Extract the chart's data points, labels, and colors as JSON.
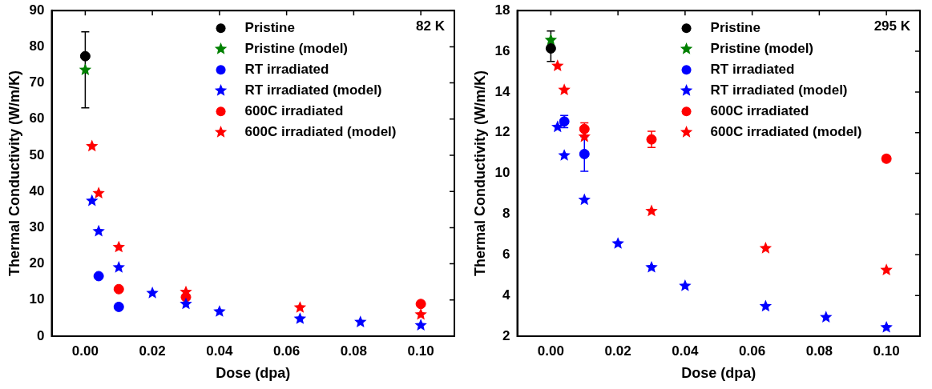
{
  "chart_data": [
    {
      "type": "scatter",
      "xlabel": "Dose (dpa)",
      "ylabel": "Thermal Conductivity (W/m/K)",
      "annotations": [
        "82 K"
      ],
      "legend": "top right",
      "xlim": [
        -0.01,
        0.11
      ],
      "ylim": [
        0,
        90
      ],
      "xticks": [
        {
          "value": 0,
          "label": "0.00"
        },
        {
          "value": 0.02,
          "label": "0.02"
        },
        {
          "value": 0.04,
          "label": "0.04"
        },
        {
          "value": 0.06,
          "label": "0.06"
        },
        {
          "value": 0.08,
          "label": "0.08"
        },
        {
          "value": 0.1,
          "label": "0.10"
        }
      ],
      "yticks": [
        0,
        10,
        20,
        30,
        40,
        50,
        60,
        70,
        80,
        90
      ],
      "series": [
        {
          "name": "Pristine",
          "color": "#000000",
          "marker": "circle",
          "x": [
            0
          ],
          "values": [
            77.4
          ],
          "errors": [
            [
              63.1,
              84.1
            ]
          ]
        },
        {
          "name": "Pristine (model)",
          "color": "#008000",
          "marker": "star",
          "x": [
            0
          ],
          "values": [
            73.6
          ]
        },
        {
          "name": "RT irradiated",
          "color": "#0000ff",
          "marker": "circle",
          "x": [
            0.004,
            0.01
          ],
          "values": [
            16.6,
            8.1
          ]
        },
        {
          "name": "RT irradiated (model)",
          "color": "#0000ff",
          "marker": "star",
          "x": [
            0.002,
            0.004,
            0.01,
            0.02,
            0.03,
            0.04,
            0.064,
            0.082,
            0.1
          ],
          "values": [
            37.4,
            29.0,
            19.0,
            11.9,
            8.9,
            6.8,
            4.8,
            3.9,
            3.0
          ]
        },
        {
          "name": "600C irradiated",
          "color": "#ff0000",
          "marker": "circle",
          "x": [
            0.01,
            0.03,
            0.1
          ],
          "values": [
            13.0,
            10.8,
            8.9
          ]
        },
        {
          "name": "600C irradiated (model)",
          "color": "#ff0000",
          "marker": "star",
          "x": [
            0.002,
            0.004,
            0.01,
            0.03,
            0.064,
            0.1
          ],
          "values": [
            52.5,
            39.5,
            24.6,
            12.2,
            7.9,
            6.0
          ]
        }
      ]
    },
    {
      "type": "scatter",
      "xlabel": "Dose (dpa)",
      "ylabel": "Thermal Conductivity (W/m/K)",
      "annotations": [
        "295 K"
      ],
      "legend": "top right",
      "xlim": [
        -0.01,
        0.11
      ],
      "ylim": [
        2,
        18
      ],
      "xticks": [
        {
          "value": 0,
          "label": "0.00"
        },
        {
          "value": 0.02,
          "label": "0.02"
        },
        {
          "value": 0.04,
          "label": "0.04"
        },
        {
          "value": 0.06,
          "label": "0.06"
        },
        {
          "value": 0.08,
          "label": "0.08"
        },
        {
          "value": 0.1,
          "label": "0.10"
        }
      ],
      "yticks": [
        2,
        4,
        6,
        8,
        10,
        12,
        14,
        16,
        18
      ],
      "series": [
        {
          "name": "Pristine",
          "color": "#000000",
          "marker": "circle",
          "x": [
            0
          ],
          "values": [
            16.14
          ],
          "errors": [
            [
              15.5,
              17.0
            ]
          ]
        },
        {
          "name": "Pristine (model)",
          "color": "#008000",
          "marker": "star",
          "x": [
            0
          ],
          "values": [
            16.55
          ]
        },
        {
          "name": "RT irradiated",
          "color": "#0000ff",
          "marker": "circle",
          "x": [
            0.004,
            0.01
          ],
          "values": [
            12.55,
            10.95
          ],
          "errors": [
            0.3,
            0.85
          ]
        },
        {
          "name": "RT irradiated (model)",
          "color": "#0000ff",
          "marker": "star",
          "x": [
            0.002,
            0.004,
            0.01,
            0.02,
            0.03,
            0.04,
            0.064,
            0.082,
            0.1
          ],
          "values": [
            12.28,
            10.88,
            8.7,
            6.55,
            5.38,
            4.47,
            3.47,
            2.93,
            2.43
          ]
        },
        {
          "name": "600C irradiated",
          "color": "#ff0000",
          "marker": "circle",
          "x": [
            0.01,
            0.03,
            0.1
          ],
          "values": [
            12.18,
            11.67,
            10.72
          ],
          "errors": [
            0.3,
            0.4,
            0.15
          ]
        },
        {
          "name": "600C irradiated (model)",
          "color": "#ff0000",
          "marker": "star",
          "x": [
            0.002,
            0.004,
            0.01,
            0.03,
            0.064,
            0.1
          ],
          "values": [
            15.28,
            14.1,
            11.8,
            8.15,
            6.32,
            5.25
          ]
        }
      ]
    }
  ]
}
